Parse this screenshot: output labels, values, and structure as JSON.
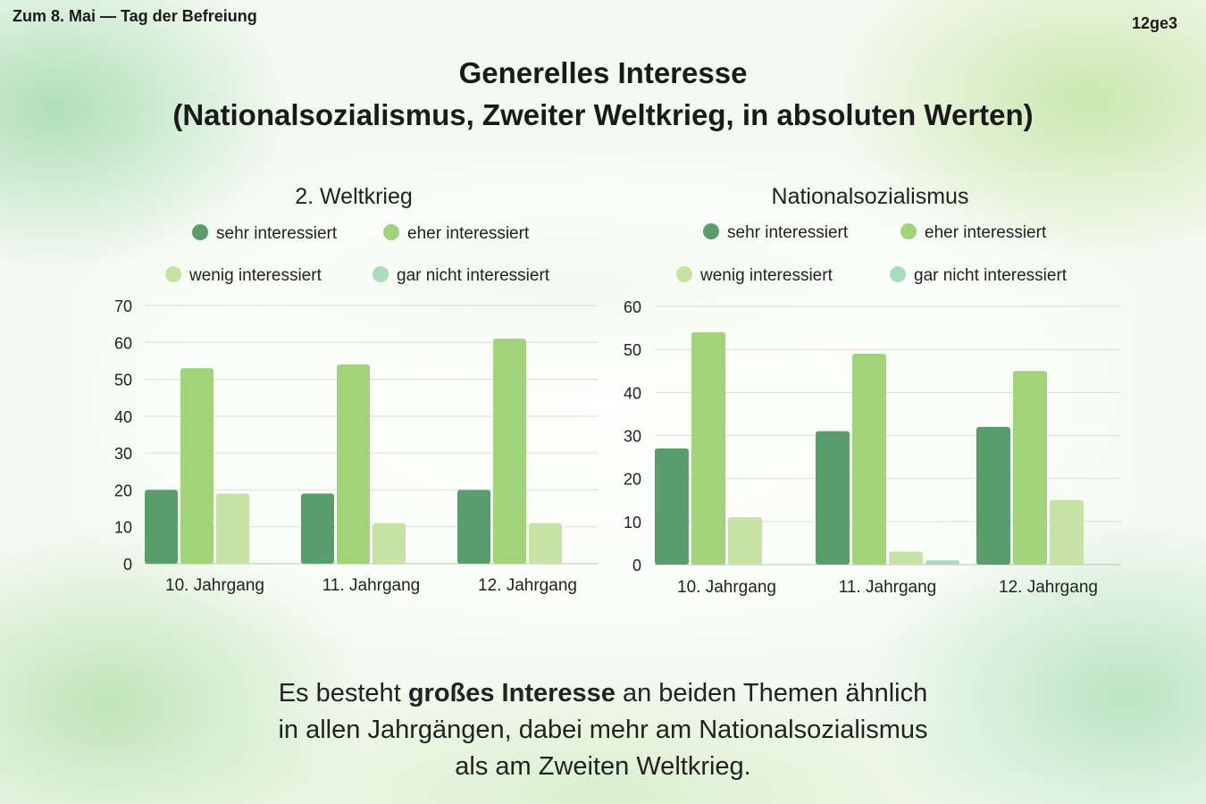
{
  "header": {
    "top_left": "Zum 8. Mai — Tag der Befreiung",
    "top_right": "12ge3",
    "title_line1": "Generelles Interesse",
    "title_line2": "(Nationalsozialismus, Zweiter Weltkrieg, in absoluten Werten)"
  },
  "colors": {
    "sehr": "#5a9c6b",
    "eher": "#a2d27a",
    "wenig": "#c6e3a5",
    "gar_nicht": "#a9dcbc"
  },
  "chart_data": [
    {
      "type": "bar",
      "title": "2. Weltkrieg",
      "categories": [
        "10. Jahrgang",
        "11. Jahrgang",
        "12. Jahrgang"
      ],
      "series": [
        {
          "name": "sehr interessiert",
          "values": [
            20,
            19,
            20
          ]
        },
        {
          "name": "eher interessiert",
          "values": [
            53,
            54,
            61
          ]
        },
        {
          "name": "wenig interessiert",
          "values": [
            19,
            11,
            11
          ]
        },
        {
          "name": "gar nicht interessiert",
          "values": [
            0,
            0,
            0
          ]
        }
      ],
      "ylim": [
        0,
        70
      ],
      "yticks": [
        0,
        10,
        20,
        30,
        40,
        50,
        60,
        70
      ],
      "grid": true,
      "legend": "top"
    },
    {
      "type": "bar",
      "title": "Nationalsozialismus",
      "categories": [
        "10. Jahrgang",
        "11. Jahrgang",
        "12. Jahrgang"
      ],
      "series": [
        {
          "name": "sehr interessiert",
          "values": [
            27,
            31,
            32
          ]
        },
        {
          "name": "eher interessiert",
          "values": [
            54,
            49,
            45
          ]
        },
        {
          "name": "wenig interessiert",
          "values": [
            11,
            3,
            15
          ]
        },
        {
          "name": "gar nicht interessiert",
          "values": [
            0,
            1,
            0
          ]
        }
      ],
      "ylim": [
        0,
        60
      ],
      "yticks": [
        0,
        10,
        20,
        30,
        40,
        50,
        60
      ],
      "grid": true,
      "legend": "top"
    }
  ],
  "footer": {
    "part1": "Es besteht ",
    "bold": "großes Interesse",
    "part2": " an beiden Themen ähnlich",
    "line2": "in allen Jahrgängen, dabei mehr am Nationalsozialismus",
    "line3": "als am Zweiten Weltkrieg."
  }
}
